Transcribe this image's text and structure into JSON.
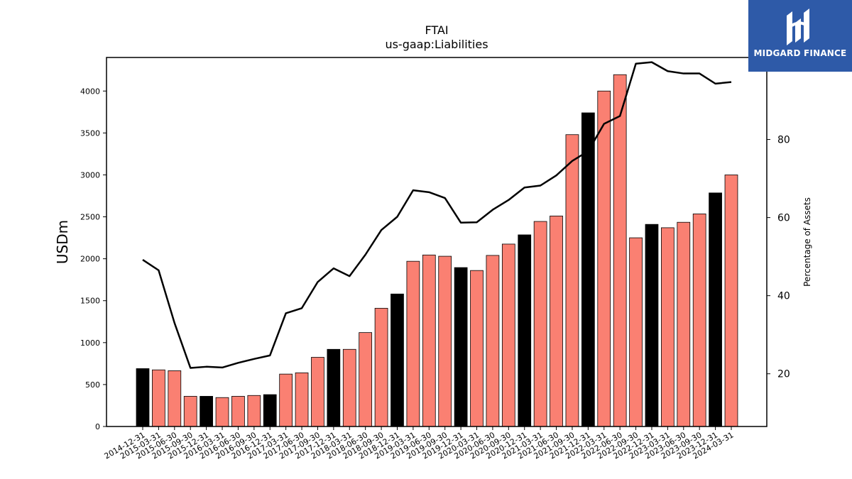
{
  "brand": {
    "name": "MIDGARD FINANCE",
    "icon": "midgard-logo-icon",
    "color": "#2e5aa8"
  },
  "chart_data": {
    "type": "bar",
    "title": "FTAI",
    "subtitle": "us-gaap:Liabilities",
    "ylabel": "USDm",
    "y2label": "Percentage of Assets",
    "ylim": [
      0,
      4400
    ],
    "y2lim": [
      6.5,
      101
    ],
    "yticks": [
      0,
      500,
      1000,
      1500,
      2000,
      2500,
      3000,
      3500,
      4000
    ],
    "y2ticks": [
      20,
      40,
      60,
      80,
      100
    ],
    "colors": {
      "annual": "#000000",
      "quarter": "#fa8072",
      "line": "#000000"
    },
    "categories": [
      "2014-12-31",
      "2015-03-31",
      "2015-06-30",
      "2015-09-30",
      "2015-12-31",
      "2016-03-31",
      "2016-06-30",
      "2016-09-30",
      "2016-12-31",
      "2017-03-31",
      "2017-06-30",
      "2017-09-30",
      "2017-12-31",
      "2018-03-31",
      "2018-06-30",
      "2018-09-30",
      "2018-12-31",
      "2019-03-31",
      "2019-06-30",
      "2019-09-30",
      "2019-12-31",
      "2020-03-31",
      "2020-06-30",
      "2020-09-30",
      "2020-12-31",
      "2021-03-31",
      "2021-06-30",
      "2021-09-30",
      "2021-12-31",
      "2022-03-31",
      "2022-06-30",
      "2022-09-30",
      "2022-12-31",
      "2023-03-31",
      "2023-06-30",
      "2023-09-30",
      "2023-12-31",
      "2024-03-31"
    ],
    "values": [
      690,
      675,
      665,
      360,
      360,
      345,
      360,
      370,
      380,
      625,
      640,
      825,
      920,
      920,
      1120,
      1410,
      1580,
      1970,
      2045,
      2030,
      1895,
      1860,
      2040,
      2175,
      2285,
      2445,
      2510,
      3480,
      3740,
      4000,
      4195,
      2250,
      2410,
      2370,
      2435,
      2535,
      2785,
      3000
    ],
    "annual": [
      true,
      false,
      false,
      false,
      true,
      false,
      false,
      false,
      true,
      false,
      false,
      false,
      true,
      false,
      false,
      false,
      true,
      false,
      false,
      false,
      true,
      false,
      false,
      false,
      true,
      false,
      false,
      false,
      true,
      false,
      false,
      false,
      true,
      false,
      false,
      false,
      true,
      false
    ],
    "pct_assets": [
      49.2,
      46.5,
      33.0,
      21.5,
      21.8,
      21.6,
      22.8,
      23.8,
      24.7,
      35.5,
      36.8,
      43.5,
      47.0,
      45.0,
      50.5,
      56.8,
      60.2,
      67.0,
      66.5,
      65.0,
      58.7,
      58.8,
      62.0,
      64.5,
      67.7,
      68.2,
      70.8,
      74.5,
      77.0,
      84.0,
      86.0,
      99.4,
      99.8,
      97.5,
      96.9,
      96.9,
      94.3,
      94.7
    ]
  }
}
